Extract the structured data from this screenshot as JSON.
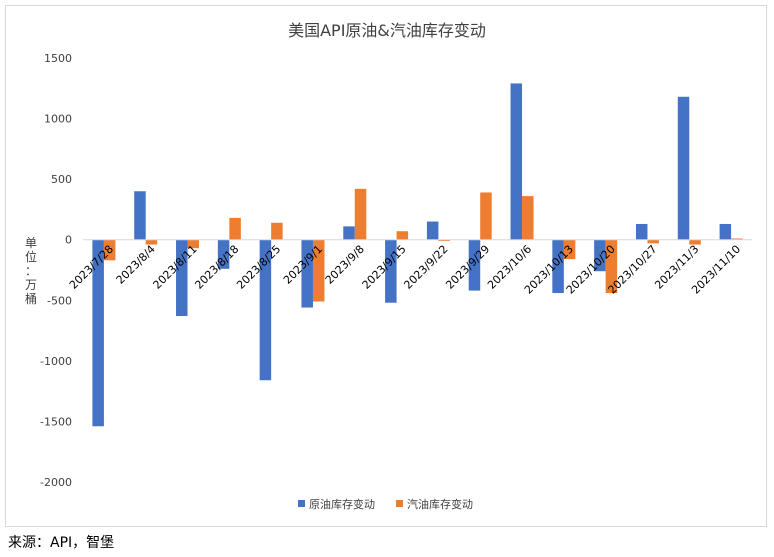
{
  "chart_data": {
    "type": "bar",
    "title": "美国API原油&汽油库存变动",
    "ylabel": "单位：万桶",
    "xlabel": "",
    "ylim": [
      -2000,
      1500
    ],
    "yticks": [
      1500,
      1000,
      500,
      0,
      -500,
      -1000,
      -1500,
      -2000
    ],
    "categories": [
      "2023/7/28",
      "2023/8/4",
      "2023/8/11",
      "2023/8/18",
      "2023/8/25",
      "2023/9/1",
      "2023/9/8",
      "2023/9/15",
      "2023/9/22",
      "2023/9/29",
      "2023/10/6",
      "2023/10/13",
      "2023/10/20",
      "2023/10/27",
      "2023/11/3",
      "2023/11/10"
    ],
    "series": [
      {
        "name": "原油库存变动",
        "color": "#4472c4",
        "values": [
          -1540,
          400,
          -630,
          -240,
          -1160,
          -560,
          110,
          -520,
          150,
          -420,
          1290,
          -440,
          -260,
          130,
          1180,
          130
        ]
      },
      {
        "name": "汽油库存变动",
        "color": "#ed7d31",
        "values": [
          -170,
          -40,
          -70,
          180,
          140,
          -510,
          420,
          70,
          -10,
          390,
          360,
          -160,
          -440,
          -30,
          -40,
          10
        ]
      }
    ],
    "legend_position": "bottom",
    "grid": false
  },
  "footer": {
    "source": "来源：API，智堡"
  }
}
